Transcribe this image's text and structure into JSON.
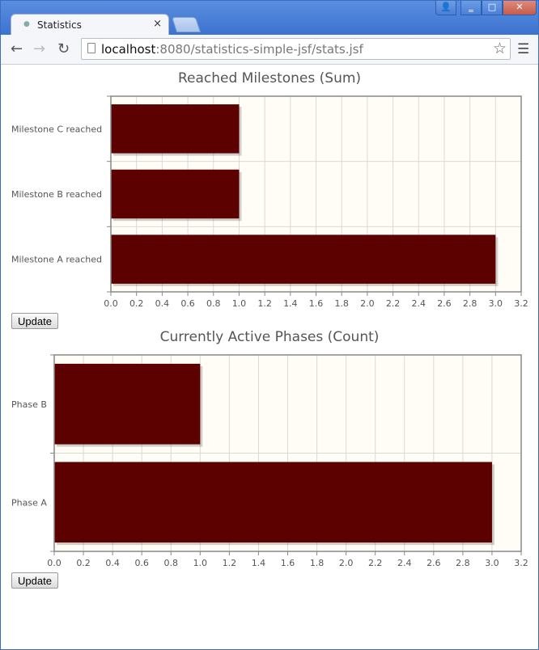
{
  "window": {
    "tab_title": "Statistics",
    "tab_close": "×",
    "buttons": {
      "user": "👤",
      "minimize": "‗",
      "maximize": "□",
      "close": "✕"
    }
  },
  "toolbar": {
    "url_host": "localhost",
    "url_rest": ":8080/statistics-simple-jsf/stats.jsf",
    "icons": {
      "back": "back-arrow-icon",
      "forward": "forward-arrow-icon",
      "reload": "reload-icon",
      "bookmark": "star-icon",
      "menu": "hamburger-menu-icon"
    }
  },
  "colors": {
    "bar": "#5c0000",
    "plot_bg": "#fffdf6",
    "grid": "#d9d9d9",
    "axis": "#888888"
  },
  "chart_data": [
    {
      "type": "bar",
      "orientation": "horizontal",
      "title": "Reached Milestones (Sum)",
      "categories": [
        "Milestone C reached",
        "Milestone B reached",
        "Milestone A reached"
      ],
      "values": [
        1,
        1,
        3
      ],
      "xlim": [
        0,
        3.2
      ],
      "xticks": [
        "0.0",
        "0.2",
        "0.4",
        "0.6",
        "0.8",
        "1.0",
        "1.2",
        "1.4",
        "1.6",
        "1.8",
        "2.0",
        "2.2",
        "2.4",
        "2.6",
        "2.8",
        "3.0",
        "3.2"
      ],
      "grid": true
    },
    {
      "type": "bar",
      "orientation": "horizontal",
      "title": "Currently Active Phases (Count)",
      "categories": [
        "Phase B",
        "Phase A"
      ],
      "values": [
        1,
        3
      ],
      "xlim": [
        0,
        3.2
      ],
      "xticks": [
        "0.0",
        "0.2",
        "0.4",
        "0.6",
        "0.8",
        "1.0",
        "1.2",
        "1.4",
        "1.6",
        "1.8",
        "2.0",
        "2.2",
        "2.4",
        "2.6",
        "2.8",
        "3.0",
        "3.2"
      ],
      "grid": true
    }
  ],
  "buttons": {
    "update1": "Update",
    "update2": "Update"
  }
}
